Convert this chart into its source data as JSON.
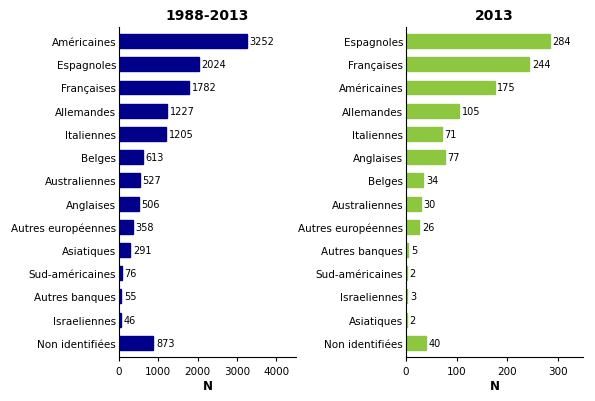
{
  "left": {
    "title": "1988-2013",
    "categories": [
      "Américaines",
      "Espagnoles",
      "Françaises",
      "Allemandes",
      "Italiennes",
      "Belges",
      "Australiennes",
      "Anglaises",
      "Autres européennes",
      "Asiatiques",
      "Sud-américaines",
      "Autres banques",
      "Israeliennes",
      "Non identifiées"
    ],
    "values": [
      3252,
      2024,
      1782,
      1227,
      1205,
      613,
      527,
      506,
      358,
      291,
      76,
      55,
      46,
      873
    ],
    "color": "#00008B",
    "xlabel": "N",
    "xlim": [
      0,
      4500
    ],
    "xticks": [
      0,
      1000,
      2000,
      3000,
      4000
    ]
  },
  "right": {
    "title": "2013",
    "categories": [
      "Espagnoles",
      "Françaises",
      "Américaines",
      "Allemandes",
      "Italiennes",
      "Anglaises",
      "Belges",
      "Australiennes",
      "Autres européennes",
      "Autres banques",
      "Sud-américaines",
      "Israeliennes",
      "Asiatiques",
      "Non identifiées"
    ],
    "values": [
      284,
      244,
      175,
      105,
      71,
      77,
      34,
      30,
      26,
      5,
      2,
      3,
      2,
      40
    ],
    "color": "#8DC63F",
    "xlabel": "N",
    "xlim": [
      0,
      350
    ],
    "xticks": [
      0,
      100,
      200,
      300
    ]
  },
  "bar_height": 0.6,
  "fontsize_labels": 7.5,
  "fontsize_values": 7,
  "fontsize_title": 10,
  "fontsize_xlabel": 8.5,
  "fontsize_xticks": 7.5,
  "background_color": "#ffffff"
}
